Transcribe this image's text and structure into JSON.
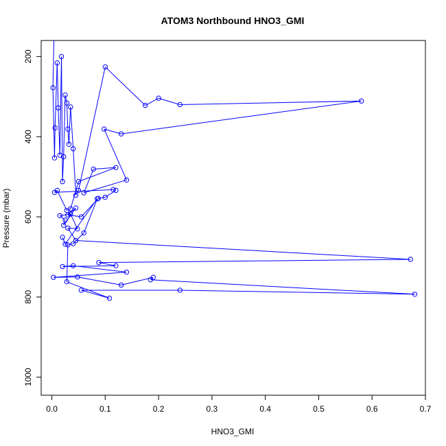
{
  "chart_data": {
    "type": "line",
    "title": "ATOM3 Northbound HNO3_GMI",
    "xlabel": "HNO3_GMI",
    "ylabel": "Pressure (mbar)",
    "xlim": [
      -0.02,
      0.7
    ],
    "ylim": [
      1045,
      160
    ],
    "y_reversed": true,
    "grid": false,
    "x_ticks": [
      "0.0",
      "0.1",
      "0.2",
      "0.3",
      "0.4",
      "0.5",
      "0.6",
      "0.7"
    ],
    "y_ticks": [
      "200",
      "400",
      "600",
      "800",
      "1000"
    ],
    "color": "#0000ff",
    "marker": "open-circle",
    "x": [
      0.002,
      0.005,
      0.006,
      0.01,
      0.012,
      0.015,
      0.018,
      0.02,
      0.022,
      0.025,
      0.028,
      0.03,
      0.032,
      0.035,
      0.04,
      0.045,
      0.05,
      0.1,
      0.175,
      0.2,
      0.24,
      0.58,
      0.13,
      0.098,
      0.14,
      0.06,
      0.078,
      0.12,
      0.05,
      0.035,
      0.028,
      0.01,
      0.005,
      0.115,
      0.12,
      0.1,
      0.087,
      0.055,
      0.03,
      0.045,
      0.022,
      0.025,
      0.015,
      0.035,
      0.048,
      0.03,
      0.045,
      0.672,
      0.088,
      0.12,
      0.02,
      0.04,
      0.14,
      0.003,
      0.048,
      0.13,
      0.19,
      0.185,
      0.68,
      0.24,
      0.055,
      0.108,
      0.028,
      0.03,
      0.04,
      0.06,
      0.085,
      0.025,
      0.02
    ],
    "y": [
      278,
      453,
      378,
      216,
      328,
      446,
      200,
      512,
      450,
      296,
      316,
      381,
      419,
      326,
      430,
      546,
      534,
      226,
      322,
      304,
      320,
      311,
      393,
      381,
      508,
      540,
      481,
      477,
      512,
      580,
      584,
      534,
      539,
      532,
      534,
      551,
      554,
      600,
      595,
      578,
      621,
      608,
      597,
      593,
      630,
      628,
      659,
      706,
      714,
      722,
      724,
      722,
      738,
      751,
      750,
      770,
      751,
      757,
      793,
      783,
      783,
      803,
      762,
      670,
      667,
      640,
      555,
      668,
      651
    ]
  }
}
